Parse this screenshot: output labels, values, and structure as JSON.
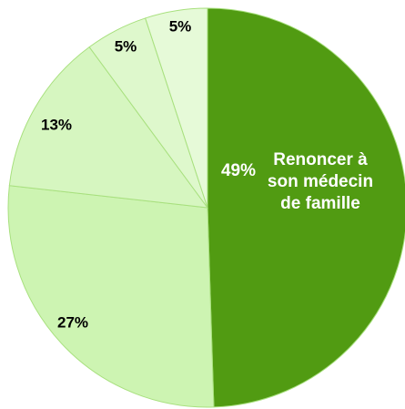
{
  "chart_data": {
    "type": "pie",
    "categories": [
      "Renoncer à son médecin de famille",
      null,
      null,
      null,
      null
    ],
    "values": [
      49,
      27,
      13,
      5,
      5
    ],
    "value_labels": [
      "49%",
      "27%",
      "13%",
      "5%",
      "5%"
    ],
    "colors": [
      "#519b12",
      "#cdf4b2",
      "#d6f6c0",
      "#def8cc",
      "#e6fad8"
    ]
  }
}
